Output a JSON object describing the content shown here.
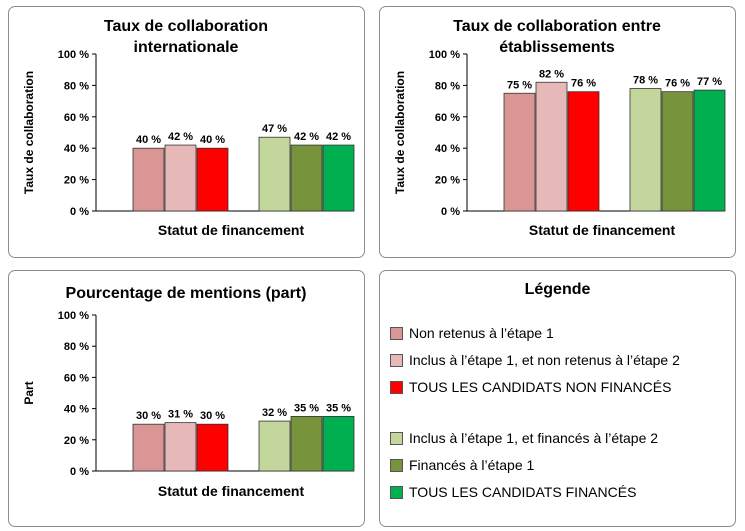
{
  "series_styles": [
    {
      "color": "#d99694"
    },
    {
      "color": "#e6b9b8"
    },
    {
      "color": "#ff0000"
    },
    {
      "color": "#c3d69b"
    },
    {
      "color": "#77933c"
    },
    {
      "color": "#00b050"
    }
  ],
  "chart_data": [
    {
      "type": "bar",
      "title": "Taux de collaboration internationale",
      "title_lines": [
        "Taux de collaboration",
        "internationale"
      ],
      "xlabel": "Statut de financement",
      "ylabel": "Taux de collaboration",
      "ylim": [
        0,
        100
      ],
      "ytick_labels": [
        "0 %",
        "20 %",
        "40 %",
        "60 %",
        "80 %",
        "100 %"
      ],
      "values": [
        40,
        42,
        40,
        47,
        42,
        42
      ],
      "value_labels": [
        "40 %",
        "42 %",
        "40 %",
        "47 %",
        "42 %",
        "42 %"
      ],
      "grid": false
    },
    {
      "type": "bar",
      "title": "Taux de collaboration entre établissements",
      "title_lines": [
        "Taux de collaboration  entre",
        "établissements"
      ],
      "xlabel": "Statut de financement",
      "ylabel": "Taux de collaboration",
      "ylim": [
        0,
        100
      ],
      "ytick_labels": [
        "0 %",
        "20 %",
        "40 %",
        "60 %",
        "80 %",
        "100 %"
      ],
      "values": [
        75,
        82,
        76,
        78,
        76,
        77
      ],
      "value_labels": [
        "75 %",
        "82 %",
        "76 %",
        "78 %",
        "76 %",
        "77 %"
      ],
      "grid": false
    },
    {
      "type": "bar",
      "title": "Pourcentage de mentions (part)",
      "title_lines": [
        "Pourcentage de mentions (part)"
      ],
      "xlabel": "Statut de financement",
      "ylabel": "Part",
      "ylim": [
        0,
        100
      ],
      "ytick_labels": [
        "0 %",
        "20 %",
        "40 %",
        "60 %",
        "80 %",
        "100 %"
      ],
      "values": [
        30,
        31,
        30,
        32,
        35,
        35
      ],
      "value_labels": [
        "30 %",
        "31 %",
        "30 %",
        "32 %",
        "35 %",
        "35 %"
      ],
      "grid": false
    }
  ],
  "legend": {
    "title": "Légende",
    "items": [
      "Non retenus à l’étape 1",
      "Inclus à l’étape 1, et non retenus à l’étape 2",
      "TOUS LES CANDIDATS NON FINANCÉS",
      "Inclus à l’étape 1, et financés à l’étape 2",
      "Financés à l’étape 1",
      "TOUS LES CANDIDATS FINANCÉS"
    ]
  }
}
